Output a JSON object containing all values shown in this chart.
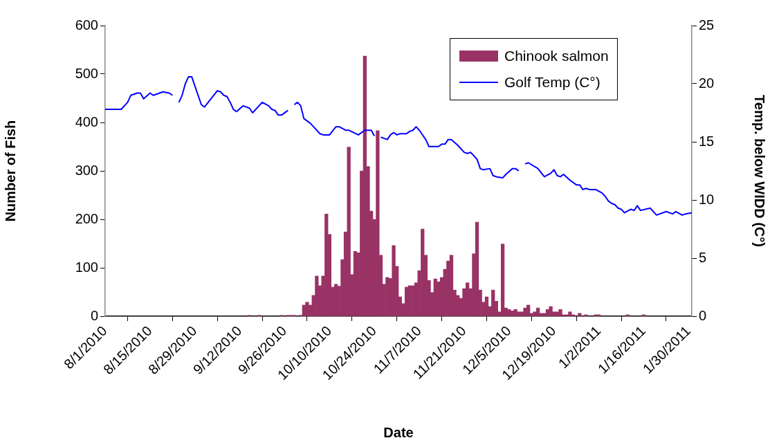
{
  "chart_data": {
    "type": "bar",
    "xlabel": "Date",
    "ylabel": "Number of Fish",
    "y2label": "Temp. below WIDD (C°)",
    "legend": "top right",
    "grid": false,
    "xlim": [
      "2010-08-01",
      "2011-01-31"
    ],
    "xticks": [
      {
        "value": "2010-08-01",
        "label": "8/1/2010"
      },
      {
        "value": "2010-08-15",
        "label": "8/15/2010"
      },
      {
        "value": "2010-08-29",
        "label": "8/29/2010"
      },
      {
        "value": "2010-09-12",
        "label": "9/12/2010"
      },
      {
        "value": "2010-09-26",
        "label": "9/26/2010"
      },
      {
        "value": "2010-10-10",
        "label": "10/10/2010"
      },
      {
        "value": "2010-10-24",
        "label": "10/24/2010"
      },
      {
        "value": "2010-11-07",
        "label": "11/7/2010"
      },
      {
        "value": "2010-11-21",
        "label": "11/21/2010"
      },
      {
        "value": "2010-12-05",
        "label": "12/5/2010"
      },
      {
        "value": "2010-12-19",
        "label": "12/19/2010"
      },
      {
        "value": "2011-01-02",
        "label": "1/2/2011"
      },
      {
        "value": "2011-01-16",
        "label": "1/16/2011"
      },
      {
        "value": "2011-01-30",
        "label": "1/30/2011"
      }
    ],
    "ylim": [
      0,
      600
    ],
    "yticks": [
      0,
      100,
      200,
      300,
      400,
      500,
      600
    ],
    "y2lim": [
      0,
      25
    ],
    "y2ticks": [
      0,
      5,
      10,
      15,
      20,
      25
    ],
    "series": [
      {
        "name": "Chinook salmon",
        "color": "#993366",
        "x": [
          "2010-09-15",
          "2010-09-18",
          "2010-09-25",
          "2010-09-27",
          "2010-09-28",
          "2010-09-29",
          "2010-10-01",
          "2010-10-02",
          "2010-10-03",
          "2010-10-04",
          "2010-10-05",
          "2010-10-06",
          "2010-10-07",
          "2010-10-08",
          "2010-10-09",
          "2010-10-10",
          "2010-10-11",
          "2010-10-12",
          "2010-10-13",
          "2010-10-14",
          "2010-10-15",
          "2010-10-16",
          "2010-10-17",
          "2010-10-18",
          "2010-10-19",
          "2010-10-20",
          "2010-10-21",
          "2010-10-22",
          "2010-10-23",
          "2010-10-24",
          "2010-10-25",
          "2010-10-26",
          "2010-10-27",
          "2010-10-28",
          "2010-10-29",
          "2010-10-30",
          "2010-10-31",
          "2010-11-01",
          "2010-11-02",
          "2010-11-03",
          "2010-11-04",
          "2010-11-05",
          "2010-11-06",
          "2010-11-07",
          "2010-11-08",
          "2010-11-09",
          "2010-11-10",
          "2010-11-11",
          "2010-11-12",
          "2010-11-13",
          "2010-11-14",
          "2010-11-15",
          "2010-11-16",
          "2010-11-17",
          "2010-11-18",
          "2010-11-19",
          "2010-11-20",
          "2010-11-21",
          "2010-11-22",
          "2010-11-23",
          "2010-11-24",
          "2010-11-25",
          "2010-11-26",
          "2010-11-27",
          "2010-11-28",
          "2010-11-29",
          "2010-11-30",
          "2010-12-01",
          "2010-12-02",
          "2010-12-03",
          "2010-12-04",
          "2010-12-05",
          "2010-12-06",
          "2010-12-07",
          "2010-12-08",
          "2010-12-09",
          "2010-12-10",
          "2010-12-11",
          "2010-12-12",
          "2010-12-13",
          "2010-12-14",
          "2010-12-15",
          "2010-12-16",
          "2010-12-17",
          "2010-12-18",
          "2010-12-19",
          "2010-12-20",
          "2010-12-21",
          "2010-12-22",
          "2010-12-23",
          "2010-12-24",
          "2010-12-25",
          "2010-12-27",
          "2010-12-29",
          "2011-01-01",
          "2011-01-02",
          "2011-01-11",
          "2011-01-16"
        ],
        "values": [
          2,
          2,
          2,
          2,
          2,
          2,
          2,
          23,
          29,
          23,
          43,
          83,
          63,
          83,
          211,
          169,
          60,
          66,
          62,
          117,
          174,
          349,
          86,
          134,
          131,
          300,
          537,
          309,
          217,
          200,
          383,
          126,
          66,
          80,
          78,
          146,
          103,
          40,
          26,
          60,
          63,
          63,
          69,
          94,
          180,
          126,
          74,
          49,
          77,
          71,
          80,
          97,
          114,
          126,
          54,
          43,
          37,
          57,
          69,
          57,
          129,
          194,
          54,
          29,
          40,
          20,
          54,
          31,
          9,
          149,
          17,
          14,
          11,
          14,
          9,
          9,
          17,
          23,
          6,
          9,
          17,
          6,
          6,
          14,
          20,
          9,
          9,
          14,
          3,
          3,
          9,
          3,
          6,
          3,
          3,
          3,
          3,
          3
        ]
      },
      {
        "name": "Golf Temp (C°)",
        "type": "line",
        "axis": "y2",
        "color": "#0000ff",
        "x": [
          "2010-08-01",
          "2010-08-06",
          "2010-08-08",
          "2010-08-09",
          "2010-08-11",
          "2010-08-12",
          "2010-08-13",
          "2010-08-15",
          "2010-08-16",
          "2010-08-19",
          "2010-08-21",
          "2010-08-22",
          "2010-08-23",
          "2010-08-24",
          "2010-08-25",
          "2010-08-26",
          "2010-08-27",
          "2010-08-28",
          "2010-08-29",
          "2010-08-31",
          "2010-09-01",
          "2010-09-03",
          "2010-09-05",
          "2010-09-06",
          "2010-09-07",
          "2010-09-08",
          "2010-09-09",
          "2010-09-10",
          "2010-09-11",
          "2010-09-13",
          "2010-09-15",
          "2010-09-16",
          "2010-09-19",
          "2010-09-21",
          "2010-09-22",
          "2010-09-23",
          "2010-09-24",
          "2010-09-25",
          "2010-09-27",
          "2010-09-28",
          "2010-09-29",
          "2010-09-30",
          "2010-10-01",
          "2010-10-02",
          "2010-10-04",
          "2010-10-05",
          "2010-10-07",
          "2010-10-08",
          "2010-10-10",
          "2010-10-12",
          "2010-10-13",
          "2010-10-15",
          "2010-10-16",
          "2010-10-19",
          "2010-10-21",
          "2010-10-23",
          "2010-10-24",
          "2010-10-25",
          "2010-10-26",
          "2010-10-28",
          "2010-10-29",
          "2010-10-30",
          "2010-10-31",
          "2010-11-01",
          "2010-11-03",
          "2010-11-04",
          "2010-11-05",
          "2010-11-06",
          "2010-11-07",
          "2010-11-09",
          "2010-11-10",
          "2010-11-13",
          "2010-11-14",
          "2010-11-15",
          "2010-11-16",
          "2010-11-17",
          "2010-11-19",
          "2010-11-21",
          "2010-11-22",
          "2010-11-23",
          "2010-11-25",
          "2010-11-26",
          "2010-11-27",
          "2010-11-29",
          "2010-11-30",
          "2010-12-01",
          "2010-12-03",
          "2010-12-04",
          "2010-12-06",
          "2010-12-07",
          "2010-12-08",
          "2010-12-09",
          "2010-12-10",
          "2010-12-11",
          "2010-12-14",
          "2010-12-16",
          "2010-12-18",
          "2010-12-19",
          "2010-12-20",
          "2010-12-21",
          "2010-12-22",
          "2010-12-24",
          "2010-12-26",
          "2010-12-27",
          "2010-12-28",
          "2010-12-29",
          "2010-12-30",
          "2011-01-01",
          "2011-01-03",
          "2011-01-04",
          "2011-01-05",
          "2011-01-06",
          "2011-01-07",
          "2011-01-08",
          "2011-01-09",
          "2011-01-10",
          "2011-01-12",
          "2011-01-13",
          "2011-01-14",
          "2011-01-15",
          "2011-01-18",
          "2011-01-20",
          "2011-01-23",
          "2011-01-25",
          "2011-01-26",
          "2011-01-28",
          "2011-01-29",
          "2011-01-31"
        ],
        "values": [
          17.8,
          17.8,
          18.4,
          19.0,
          19.2,
          19.2,
          18.7,
          19.2,
          19.0,
          19.3,
          19.2,
          19.0,
          null,
          18.4,
          19.0,
          20.0,
          20.6,
          20.6,
          19.8,
          18.2,
          18.0,
          18.7,
          19.4,
          19.3,
          19.0,
          18.9,
          18.4,
          17.8,
          17.6,
          18.1,
          17.9,
          17.5,
          18.4,
          18.1,
          17.8,
          17.7,
          17.3,
          17.3,
          17.7,
          null,
          18.2,
          18.4,
          18.1,
          17.0,
          16.6,
          16.3,
          15.7,
          15.6,
          15.6,
          16.3,
          16.3,
          16.0,
          16.0,
          15.6,
          16.0,
          16.0,
          15.5,
          null,
          15.4,
          15.2,
          15.6,
          15.8,
          15.6,
          15.7,
          15.7,
          15.9,
          16.0,
          16.3,
          16.0,
          15.2,
          14.6,
          14.6,
          14.8,
          14.8,
          15.2,
          15.2,
          14.7,
          14.1,
          14.0,
          14.1,
          13.5,
          12.7,
          12.6,
          12.7,
          12.1,
          12.0,
          11.9,
          12.2,
          12.7,
          12.7,
          12.5,
          null,
          13.1,
          13.2,
          12.7,
          12.0,
          12.3,
          12.6,
          12.1,
          12.0,
          12.2,
          11.7,
          11.3,
          11.3,
          10.9,
          11.0,
          10.9,
          10.9,
          10.6,
          10.3,
          9.9,
          9.7,
          9.6,
          9.3,
          9.2,
          8.9,
          9.2,
          9.1,
          9.5,
          9.1,
          9.3,
          8.7,
          9.0,
          8.8,
          9.0,
          8.7,
          8.8,
          8.9
        ]
      }
    ]
  }
}
